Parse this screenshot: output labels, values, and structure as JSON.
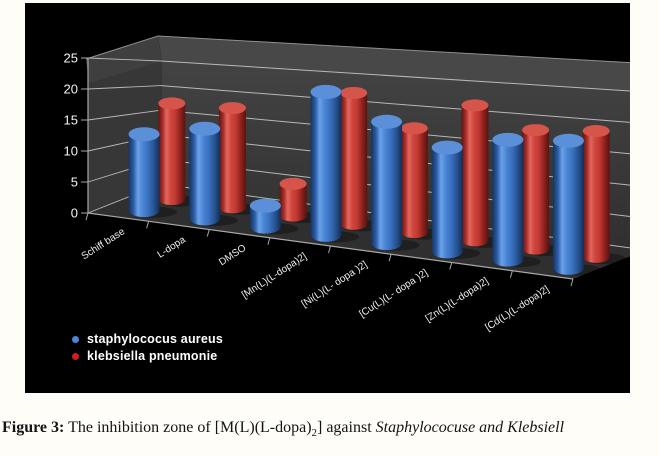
{
  "chart_data": {
    "type": "bar",
    "variant": "3d-cylinder",
    "title": "",
    "xlabel": "",
    "ylabel": "",
    "categories": [
      "Schiff base",
      "L-dopa",
      "DMSO",
      "[Mn(L)(L-dopa)2]",
      "[Ni(L)(L- dopa )2]",
      "[Cu(L)(L- dopa )2]",
      "[Zn(L)(L-dopa)2]",
      "[Cd(L)(L-dopa)2]"
    ],
    "series": [
      {
        "name": "staphylococus aureus",
        "color": "#3f76c5",
        "values": [
          13,
          14,
          3,
          19,
          15,
          12,
          13,
          13
        ]
      },
      {
        "name": "klebsiella pneumonie",
        "color": "#c43732",
        "values": [
          18,
          17,
          5,
          19,
          14,
          17,
          14,
          14
        ]
      }
    ],
    "ylim": [
      0,
      25
    ],
    "yticks": [
      0,
      5,
      10,
      15,
      20,
      25
    ],
    "grid": true,
    "legend_position": "bottom-left",
    "panel_background": "#000000",
    "wall_color": "#383838",
    "floor_color": "#2f2f2f",
    "gridline_color": "#b8b8b8",
    "tick_label_color": "#f3f3f3"
  },
  "legend": {
    "marker_colors": {
      "staphylococus": "#4a86d8",
      "klebsiella": "#cc1f1f"
    }
  },
  "caption": {
    "label": "Figure 3:",
    "body_before_sub": " The inhibition zone of [M(L)(L-dopa)",
    "sub": "2",
    "body_after_sub": "] against ",
    "italic": "Staphylococuse and Klebsiell"
  }
}
